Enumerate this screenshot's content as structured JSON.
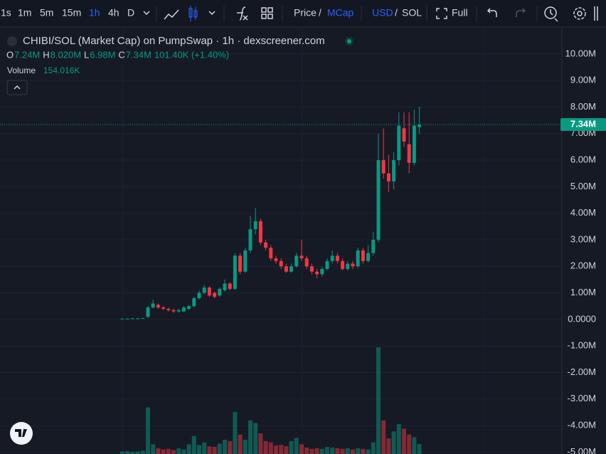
{
  "toolbar": {
    "intervals": [
      "1s",
      "1m",
      "5m",
      "15m",
      "1h",
      "4h",
      "D"
    ],
    "price": "Price",
    "price_sep": "/",
    "mcap": "MCap",
    "usd": "USD",
    "currency_sep": "/",
    "sol": "SOL",
    "full": "Full"
  },
  "chart_data": {
    "type": "candlestick",
    "title": "CHIBI/SOL (Market Cap) on PumpSwap · 1h · dexscreener.com",
    "legend": {
      "o": "O",
      "o_value": "7.24M",
      "h": "H",
      "h_value": "8.020M",
      "l": "L",
      "l_value": "6.98M",
      "c": "C",
      "c_value": "7.34M",
      "change": "101.40K (+1.40%)",
      "volume": "Volume",
      "volume_value": "154.016K"
    },
    "last_price": {
      "value": 7340000,
      "label": "7.34M"
    },
    "up_color": "#089981",
    "down_color": "#f23645",
    "open": [
      20000,
      30000,
      30000,
      40000,
      40000,
      100000,
      450000,
      550000,
      450000,
      400000,
      350000,
      300000,
      300000,
      400000,
      500000,
      800000,
      1000000,
      1200000,
      1000000,
      900000,
      1100000,
      1350000,
      1150000,
      2400000,
      1800000,
      2600000,
      3400000,
      3700000,
      2900000,
      2700000,
      2300000,
      2200000,
      2000000,
      1800000,
      2000000,
      2400000,
      2300000,
      2000000,
      1800000,
      1700000,
      1900000,
      2200000,
      2400000,
      2200000,
      1900000,
      2100000,
      2000000,
      2600000,
      2200000,
      2500000,
      3000000,
      6000000,
      5500000,
      5200000,
      6000000,
      7200000,
      6600000,
      5900000,
      7240000
    ],
    "high": [
      40000,
      40000,
      50000,
      50000,
      60000,
      500000,
      750000,
      600000,
      500000,
      450000,
      400000,
      400000,
      500000,
      550000,
      850000,
      1100000,
      1300000,
      1250000,
      1050000,
      1200000,
      1500000,
      1400000,
      2500000,
      2500000,
      2700000,
      3900000,
      4200000,
      3800000,
      3000000,
      2800000,
      2400000,
      2300000,
      2100000,
      2100000,
      2500000,
      3000000,
      2400000,
      2100000,
      1900000,
      2000000,
      2300000,
      2600000,
      2500000,
      2300000,
      2200000,
      2200000,
      2700000,
      2700000,
      2800000,
      3300000,
      7000000,
      7200000,
      6200000,
      6300000,
      7800000,
      7800000,
      7800000,
      7900000,
      8020000
    ],
    "low": [
      10000,
      20000,
      20000,
      30000,
      30000,
      50000,
      400000,
      400000,
      350000,
      300000,
      250000,
      250000,
      280000,
      350000,
      450000,
      750000,
      950000,
      850000,
      800000,
      850000,
      1050000,
      1100000,
      1100000,
      1700000,
      1750000,
      2500000,
      3200000,
      2800000,
      2600000,
      2200000,
      2100000,
      1900000,
      1750000,
      1750000,
      1950000,
      2200000,
      1900000,
      1700000,
      1550000,
      1600000,
      1850000,
      2100000,
      2100000,
      1850000,
      1850000,
      1900000,
      1950000,
      2100000,
      2150000,
      2400000,
      2900000,
      5300000,
      4800000,
      4900000,
      5800000,
      6500000,
      5500000,
      5800000,
      6980000
    ],
    "close": [
      30000,
      30000,
      40000,
      40000,
      50000,
      450000,
      600000,
      450000,
      400000,
      350000,
      300000,
      350000,
      450000,
      500000,
      800000,
      1000000,
      1200000,
      900000,
      850000,
      1150000,
      1350000,
      1150000,
      2400000,
      1800000,
      2600000,
      3400000,
      3700000,
      2900000,
      2700000,
      2300000,
      2200000,
      2000000,
      1800000,
      2000000,
      2400000,
      2300000,
      2000000,
      1800000,
      1700000,
      1900000,
      2200000,
      2400000,
      2200000,
      1900000,
      2100000,
      2000000,
      2600000,
      2200000,
      2500000,
      3000000,
      6000000,
      5500000,
      5200000,
      6000000,
      7300000,
      6700000,
      5900000,
      7300000,
      7340000
    ],
    "volume": [
      40000,
      45000,
      35000,
      40000,
      50000,
      720000,
      150000,
      90000,
      70000,
      80000,
      60000,
      90000,
      70000,
      150000,
      280000,
      140000,
      180000,
      120000,
      110000,
      160000,
      220000,
      200000,
      650000,
      300000,
      220000,
      520000,
      480000,
      320000,
      200000,
      180000,
      130000,
      140000,
      120000,
      200000,
      250000,
      150000,
      100000,
      80000,
      90000,
      80000,
      110000,
      100000,
      90000,
      80000,
      90000,
      70000,
      90000,
      80000,
      70000,
      180000,
      1650000,
      520000,
      240000,
      350000,
      460000,
      390000,
      300000,
      260000,
      154016
    ],
    "ylim": [
      -5070000,
      10960000
    ],
    "yticks": [
      {
        "value": 10000000,
        "label": "10.00M"
      },
      {
        "value": 9000000,
        "label": "9.00M"
      },
      {
        "value": 8000000,
        "label": "8.00M"
      },
      {
        "value": 7000000,
        "label": "7.00M"
      },
      {
        "value": 6000000,
        "label": "6.00M"
      },
      {
        "value": 5000000,
        "label": "5.00M"
      },
      {
        "value": 4000000,
        "label": "4.00M"
      },
      {
        "value": 3000000,
        "label": "3.00M"
      },
      {
        "value": 2000000,
        "label": "2.00M"
      },
      {
        "value": 1000000,
        "label": "1.00M"
      },
      {
        "value": 0,
        "label": "0.0000"
      },
      {
        "value": -1000000,
        "label": "-1.00M"
      },
      {
        "value": -2000000,
        "label": "-2.00M"
      },
      {
        "value": -3000000,
        "label": "-3.00M"
      },
      {
        "value": -4000000,
        "label": "-4.00M"
      },
      {
        "value": -5000000,
        "label": "-5.00M"
      }
    ],
    "y2lim": [
      0,
      6580000
    ],
    "grid": true
  }
}
